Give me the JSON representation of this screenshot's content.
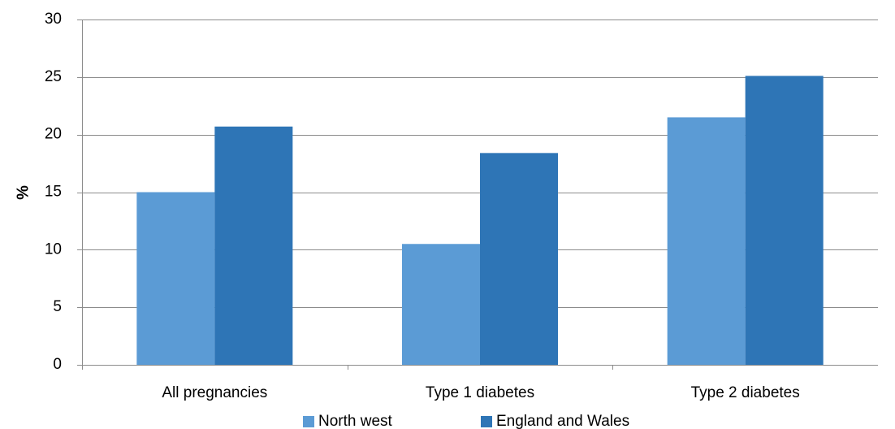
{
  "chart_data": {
    "type": "bar",
    "title": "",
    "xlabel": "",
    "ylabel": "%",
    "ylim": [
      0,
      30
    ],
    "yticks": [
      0,
      5,
      10,
      15,
      20,
      25,
      30
    ],
    "grid": true,
    "legend_position": "bottom",
    "categories": [
      "All pregnancies",
      "Type 1 diabetes",
      "Type 2 diabetes"
    ],
    "series": [
      {
        "name": "North west",
        "values": [
          15.0,
          10.5,
          21.5
        ],
        "color": "#5b9bd5"
      },
      {
        "name": "England and Wales",
        "values": [
          20.7,
          18.4,
          25.1
        ],
        "color": "#2e75b6"
      }
    ]
  }
}
